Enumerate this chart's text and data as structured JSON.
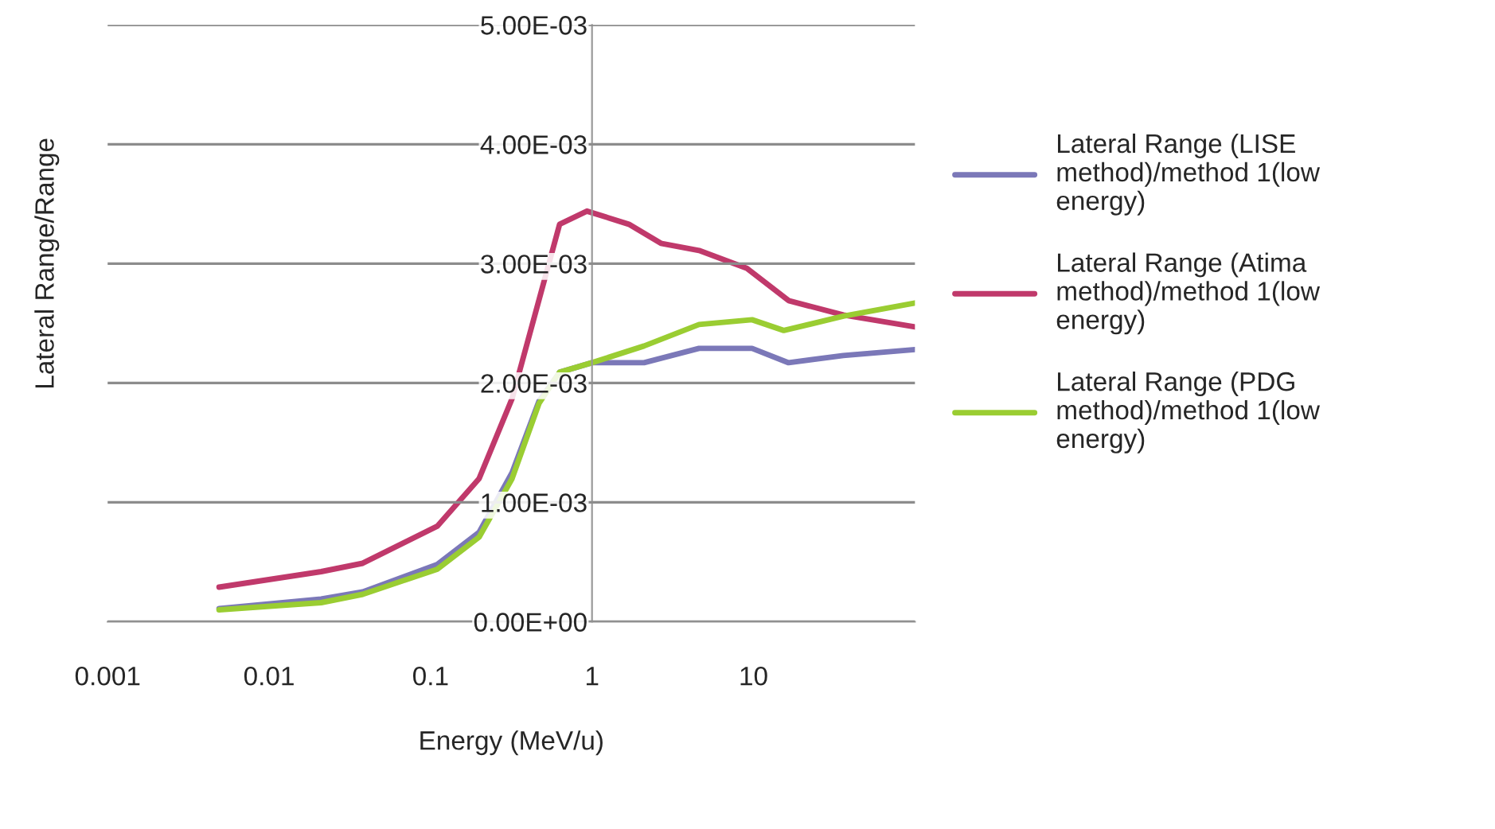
{
  "chart_data": {
    "type": "line",
    "xlabel": "Energy (MeV/u)",
    "ylabel": "Lateral Range/Range",
    "log": "x",
    "xlim": [
      0.001,
      100
    ],
    "xticks": [
      0.001,
      0.01,
      0.1,
      1,
      10
    ],
    "ylim": [
      0,
      0.005
    ],
    "yticks": [
      {
        "value": 0,
        "label": "0.00E+00"
      },
      {
        "value": 0.001,
        "label": "1.00E-03"
      },
      {
        "value": 0.002,
        "label": "2.00E-03"
      },
      {
        "value": 0.003,
        "label": "3.00E-03"
      },
      {
        "value": 0.004,
        "label": "4.00E-03"
      },
      {
        "value": 0.005,
        "label": "5.00E-03"
      }
    ],
    "grid": "y",
    "legend": "right",
    "marker": "none",
    "line_style": "solid",
    "series": [
      {
        "name": "Lateral Range (LISE method)/method 1(low energy)",
        "color": "#7b78b8",
        "x": [
          0.0049,
          0.021,
          0.038,
          0.11,
          0.2,
          0.32,
          0.47,
          0.63,
          1,
          2.1,
          4.6,
          9.8,
          16.5,
          36,
          100
        ],
        "values": [
          0.00011,
          0.00019,
          0.00025,
          0.00048,
          0.00075,
          0.00125,
          0.00185,
          0.00209,
          0.00217,
          0.00217,
          0.00229,
          0.00229,
          0.00217,
          0.00223,
          0.00228
        ]
      },
      {
        "name": "Lateral Range (Atima method)/method 1(low energy)",
        "color": "#c0396b",
        "x": [
          0.0049,
          0.021,
          0.038,
          0.11,
          0.2,
          0.32,
          0.63,
          0.93,
          1.69,
          2.67,
          4.6,
          9.1,
          16.5,
          36,
          100
        ],
        "values": [
          0.00029,
          0.00042,
          0.00049,
          0.0008,
          0.0012,
          0.00187,
          0.00333,
          0.00344,
          0.00333,
          0.00317,
          0.00311,
          0.00296,
          0.00269,
          0.00257,
          0.00247
        ]
      },
      {
        "name": "Lateral Range (PDG method)/method 1(low energy)",
        "color": "#9acd32",
        "x": [
          0.0049,
          0.021,
          0.038,
          0.11,
          0.2,
          0.32,
          0.47,
          0.63,
          1,
          2.1,
          4.6,
          9.8,
          15.4,
          36,
          100
        ],
        "values": [
          0.0001,
          0.00016,
          0.00023,
          0.00044,
          0.00071,
          0.0012,
          0.00183,
          0.00209,
          0.00217,
          0.00231,
          0.00249,
          0.00253,
          0.00244,
          0.00256,
          0.00267
        ]
      }
    ]
  }
}
